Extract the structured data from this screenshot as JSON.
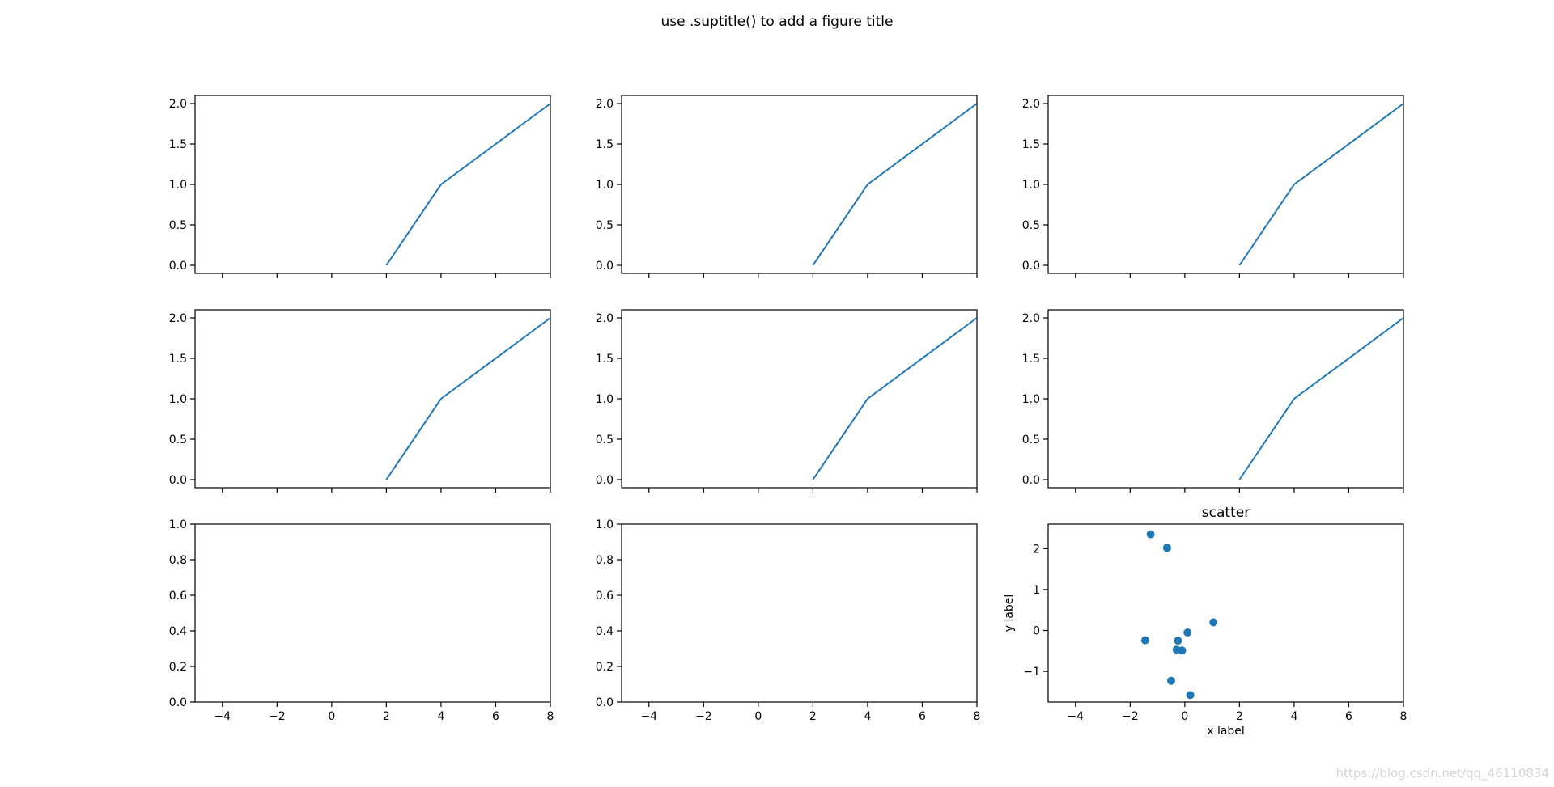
{
  "figure": {
    "suptitle": "use .suptitle() to add a figure title",
    "line_color": "#1f77b4",
    "axes_color": "#000000",
    "background": "#ffffff"
  },
  "watermark": "https://blog.csdn.net/qq_46110834",
  "chart_data": [
    {
      "type": "line",
      "panel": "row1-col1",
      "xlim": [
        -5,
        8
      ],
      "ylim": [
        -0.1,
        2.1
      ],
      "x": [
        2,
        4,
        8
      ],
      "y": [
        0,
        1,
        2
      ],
      "xticks": [
        -4,
        -2,
        0,
        2,
        4,
        6,
        8
      ],
      "yticks": [
        0.0,
        0.5,
        1.0,
        1.5,
        2.0
      ],
      "ytick_labels": [
        "0.0",
        "0.5",
        "1.0",
        "1.5",
        "2.0"
      ],
      "xtick_labels_visible": false
    },
    {
      "type": "line",
      "panel": "row1-col2",
      "xlim": [
        -5,
        8
      ],
      "ylim": [
        -0.1,
        2.1
      ],
      "x": [
        2,
        4,
        8
      ],
      "y": [
        0,
        1,
        2
      ],
      "xticks": [
        -4,
        -2,
        0,
        2,
        4,
        6,
        8
      ],
      "yticks": [
        0.0,
        0.5,
        1.0,
        1.5,
        2.0
      ],
      "ytick_labels": [
        "0.0",
        "0.5",
        "1.0",
        "1.5",
        "2.0"
      ],
      "xtick_labels_visible": false
    },
    {
      "type": "line",
      "panel": "row1-col3",
      "xlim": [
        -5,
        8
      ],
      "ylim": [
        -0.1,
        2.1
      ],
      "x": [
        2,
        4,
        8
      ],
      "y": [
        0,
        1,
        2
      ],
      "xticks": [
        -4,
        -2,
        0,
        2,
        4,
        6,
        8
      ],
      "yticks": [
        0.0,
        0.5,
        1.0,
        1.5,
        2.0
      ],
      "ytick_labels": [
        "0.0",
        "0.5",
        "1.0",
        "1.5",
        "2.0"
      ],
      "xtick_labels_visible": false
    },
    {
      "type": "line",
      "panel": "row2-col1",
      "xlim": [
        -5,
        8
      ],
      "ylim": [
        -0.1,
        2.1
      ],
      "x": [
        2,
        4,
        8
      ],
      "y": [
        0,
        1,
        2
      ],
      "xticks": [
        -4,
        -2,
        0,
        2,
        4,
        6,
        8
      ],
      "yticks": [
        0.0,
        0.5,
        1.0,
        1.5,
        2.0
      ],
      "ytick_labels": [
        "0.0",
        "0.5",
        "1.0",
        "1.5",
        "2.0"
      ],
      "xtick_labels_visible": false
    },
    {
      "type": "line",
      "panel": "row2-col2",
      "xlim": [
        -5,
        8
      ],
      "ylim": [
        -0.1,
        2.1
      ],
      "x": [
        2,
        4,
        8
      ],
      "y": [
        0,
        1,
        2
      ],
      "xticks": [
        -4,
        -2,
        0,
        2,
        4,
        6,
        8
      ],
      "yticks": [
        0.0,
        0.5,
        1.0,
        1.5,
        2.0
      ],
      "ytick_labels": [
        "0.0",
        "0.5",
        "1.0",
        "1.5",
        "2.0"
      ],
      "xtick_labels_visible": false
    },
    {
      "type": "line",
      "panel": "row2-col3",
      "xlim": [
        -5,
        8
      ],
      "ylim": [
        -0.1,
        2.1
      ],
      "x": [
        2,
        4,
        8
      ],
      "y": [
        0,
        1,
        2
      ],
      "xticks": [
        -4,
        -2,
        0,
        2,
        4,
        6,
        8
      ],
      "yticks": [
        0.0,
        0.5,
        1.0,
        1.5,
        2.0
      ],
      "ytick_labels": [
        "0.0",
        "0.5",
        "1.0",
        "1.5",
        "2.0"
      ],
      "xtick_labels_visible": false
    },
    {
      "type": "line",
      "panel": "row3-col1",
      "xlim": [
        -5,
        8
      ],
      "ylim": [
        0,
        1
      ],
      "x": [],
      "y": [],
      "xticks": [
        -4,
        -2,
        0,
        2,
        4,
        6,
        8
      ],
      "xtick_labels": [
        "−4",
        "−2",
        "0",
        "2",
        "4",
        "6",
        "8"
      ],
      "yticks": [
        0.0,
        0.2,
        0.4,
        0.6,
        0.8,
        1.0
      ],
      "ytick_labels": [
        "0.0",
        "0.2",
        "0.4",
        "0.6",
        "0.8",
        "1.0"
      ],
      "xtick_labels_visible": true
    },
    {
      "type": "line",
      "panel": "row3-col2",
      "xlim": [
        -5,
        8
      ],
      "ylim": [
        0,
        1
      ],
      "x": [],
      "y": [],
      "xticks": [
        -4,
        -2,
        0,
        2,
        4,
        6,
        8
      ],
      "xtick_labels": [
        "−4",
        "−2",
        "0",
        "2",
        "4",
        "6",
        "8"
      ],
      "yticks": [
        0.0,
        0.2,
        0.4,
        0.6,
        0.8,
        1.0
      ],
      "ytick_labels": [
        "0.0",
        "0.2",
        "0.4",
        "0.6",
        "0.8",
        "1.0"
      ],
      "xtick_labels_visible": true
    },
    {
      "type": "scatter",
      "panel": "row3-col3",
      "title": "scatter",
      "xlabel": "x label",
      "ylabel": "y label",
      "xlim": [
        -5,
        8
      ],
      "ylim": [
        -1.75,
        2.6
      ],
      "x": [
        -1.25,
        -0.65,
        1.05,
        0.1,
        -1.45,
        -0.25,
        -0.3,
        -0.1,
        -0.5,
        0.2
      ],
      "y": [
        2.35,
        2.02,
        0.2,
        -0.05,
        -0.24,
        -0.25,
        -0.47,
        -0.49,
        -1.23,
        -1.58
      ],
      "xticks": [
        -4,
        -2,
        0,
        2,
        4,
        6,
        8
      ],
      "xtick_labels": [
        "−4",
        "−2",
        "0",
        "2",
        "4",
        "6",
        "8"
      ],
      "yticks": [
        -1,
        0,
        1,
        2
      ],
      "ytick_labels": [
        "−1",
        "0",
        "1",
        "2"
      ],
      "xtick_labels_visible": true
    }
  ]
}
